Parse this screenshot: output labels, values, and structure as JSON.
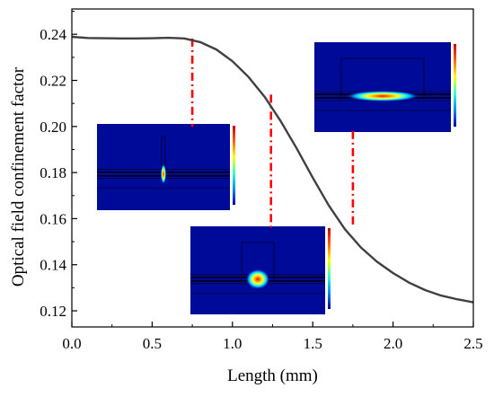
{
  "chart_data": {
    "type": "line",
    "title": "",
    "xlabel": "Length (mm)",
    "ylabel": "Optical field confinement factor",
    "xlim": [
      0.0,
      2.5
    ],
    "ylim": [
      0.113,
      0.251
    ],
    "x_ticks": [
      0.0,
      0.5,
      1.0,
      1.5,
      2.0,
      2.5
    ],
    "x_tick_labels": [
      "0.0",
      "0.5",
      "1.0",
      "1.5",
      "2.0",
      "2.5"
    ],
    "y_ticks": [
      0.12,
      0.14,
      0.16,
      0.18,
      0.2,
      0.22,
      0.24
    ],
    "y_tick_labels": [
      "0.12",
      "0.14",
      "0.16",
      "0.18",
      "0.20",
      "0.22",
      "0.24"
    ],
    "grid": false,
    "legend": "none",
    "line_color": "#404040",
    "marker_color": "#ff0000",
    "series": [
      {
        "x": [
          0.0,
          0.1,
          0.2,
          0.3,
          0.4,
          0.5,
          0.6,
          0.7,
          0.8,
          0.9,
          1.0,
          1.1,
          1.2,
          1.3,
          1.4,
          1.5,
          1.6,
          1.7,
          1.8,
          1.9,
          2.0,
          2.1,
          2.2,
          2.3,
          2.4,
          2.5
        ],
        "y": [
          0.2389,
          0.2384,
          0.2383,
          0.2382,
          0.2382,
          0.2383,
          0.2385,
          0.2382,
          0.2366,
          0.2334,
          0.2283,
          0.2215,
          0.2129,
          0.2024,
          0.1905,
          0.1778,
          0.1657,
          0.1554,
          0.1475,
          0.1413,
          0.1364,
          0.1322,
          0.129,
          0.1266,
          0.125,
          0.1237
        ]
      }
    ],
    "markers": [
      {
        "x": 0.75,
        "y_top": 0.2382,
        "y_bottom": 0.1998
      },
      {
        "x": 1.24,
        "y_top": 0.2138,
        "y_bottom": 0.155
      },
      {
        "x": 1.75,
        "y_top": 0.1575,
        "y_bottom": 0.1985
      }
    ],
    "insets": [
      {
        "name": "mode-profile-narrow",
        "mode": "narrow"
      },
      {
        "name": "mode-profile-round",
        "mode": "round"
      },
      {
        "name": "mode-profile-wide",
        "mode": "wide"
      }
    ]
  }
}
